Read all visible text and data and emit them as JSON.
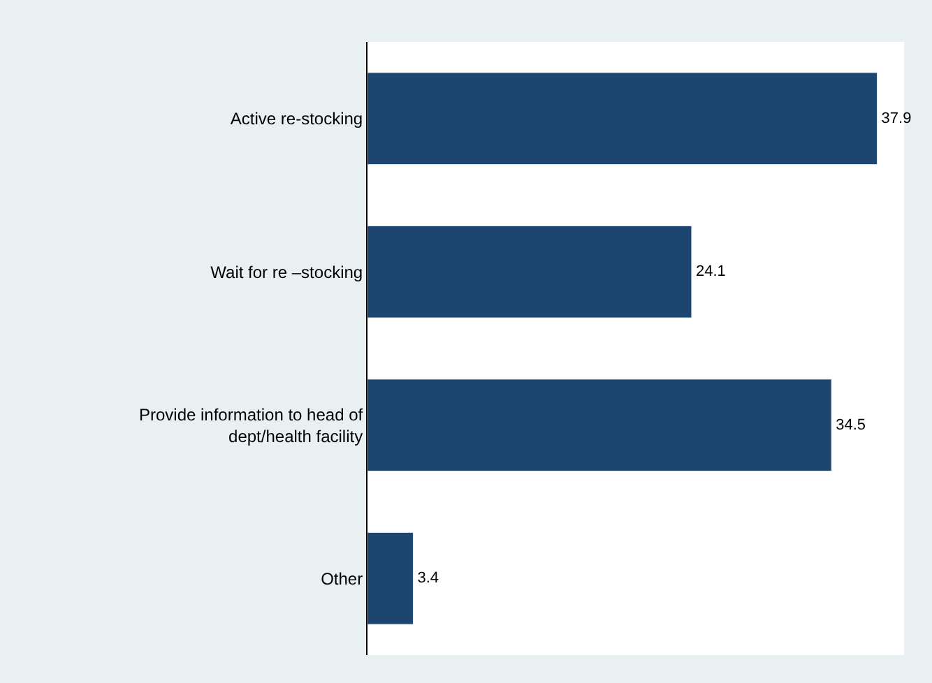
{
  "chart_data": {
    "type": "bar",
    "orientation": "horizontal",
    "categories": [
      "Active re-stocking",
      "Wait for re –stocking",
      "Provide information to head of dept/health facility",
      "Other"
    ],
    "values": [
      37.9,
      24.1,
      34.5,
      3.4
    ],
    "color": "#1c4570",
    "data_labels": true,
    "legend": false
  }
}
